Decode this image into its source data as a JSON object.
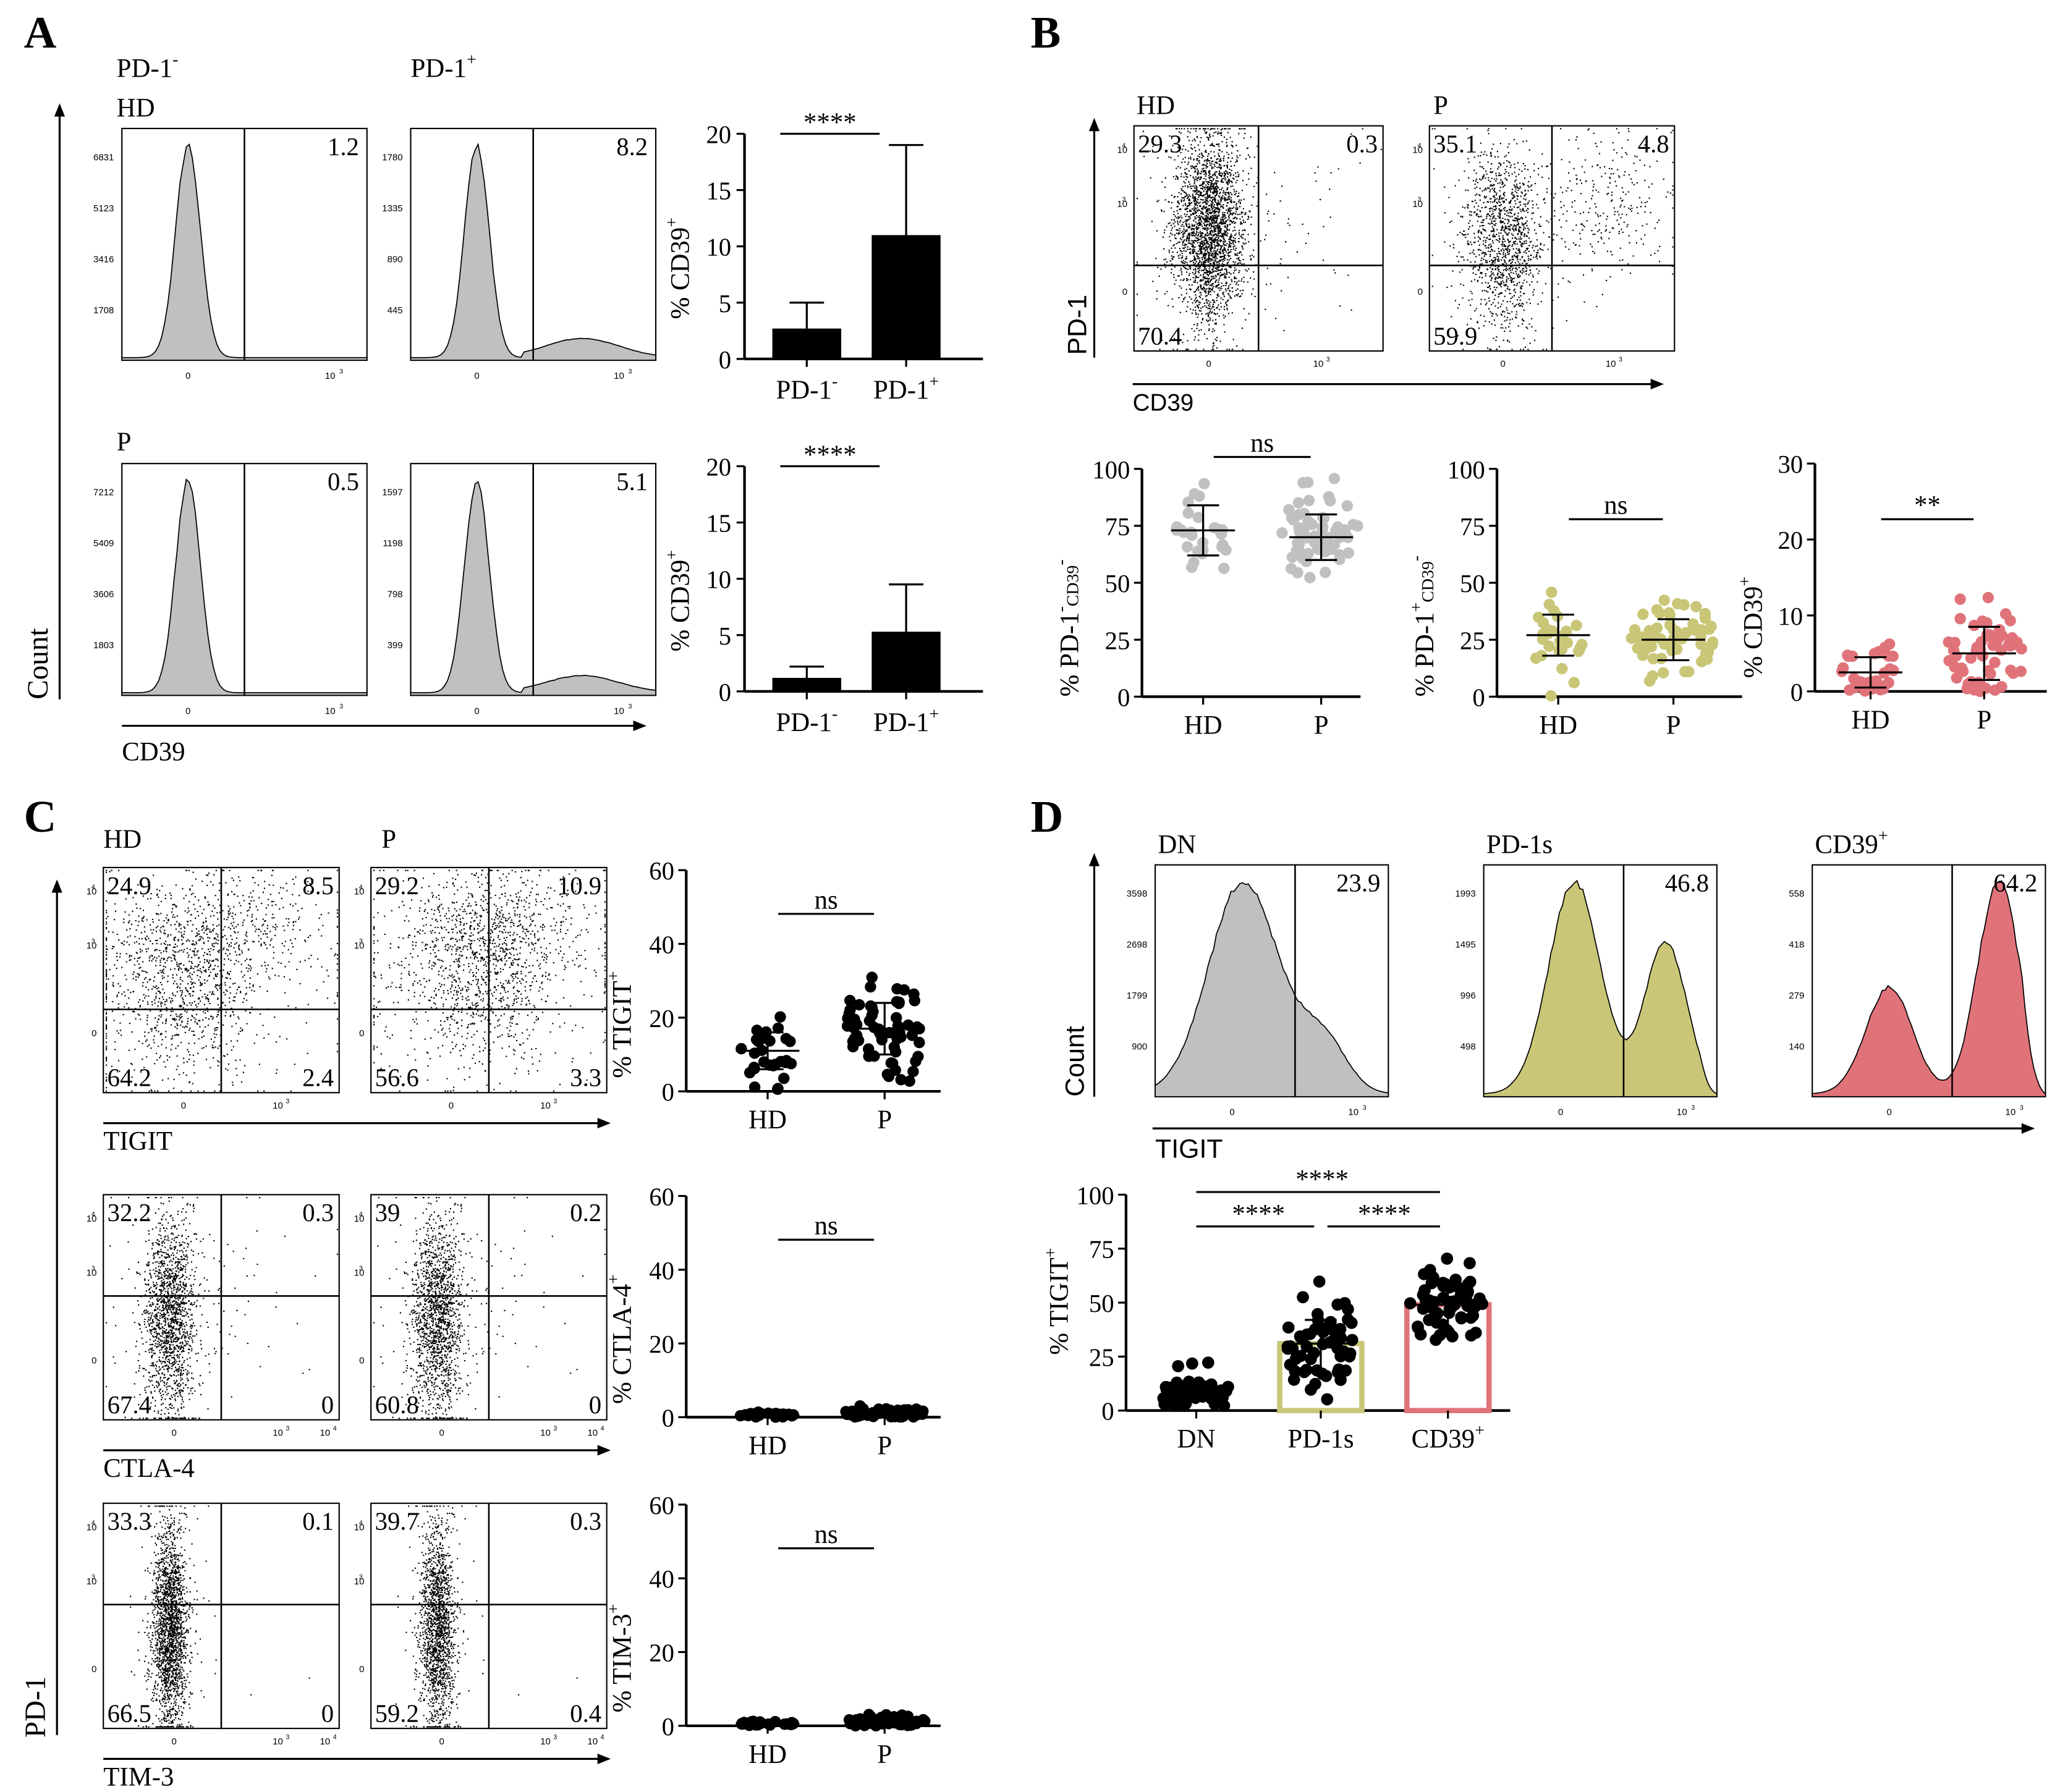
{
  "colors": {
    "gray": "#c0c0c0",
    "olive": "#c9c777",
    "salmon": "#e0737a",
    "black": "#000000"
  },
  "panels": {
    "A": {
      "letter": "A",
      "col_labels": [
        "PD-1",
        "PD-1"
      ],
      "col_sups": [
        "-",
        "+"
      ],
      "row_labels": [
        "HD",
        "P"
      ],
      "y_axis": "Count",
      "x_axis": "CD39",
      "hist": [
        {
          "yticks": [
            "6831",
            "5123",
            "3416",
            "1708"
          ],
          "pct": "1.2",
          "tail": 0.0
        },
        {
          "yticks": [
            "1780",
            "1335",
            "890",
            "445"
          ],
          "pct": "8.2",
          "tail": 0.09
        },
        {
          "yticks": [
            "7212",
            "5409",
            "3606",
            "1803"
          ],
          "pct": "0.5",
          "tail": 0.0
        },
        {
          "yticks": [
            "1597",
            "1198",
            "798",
            "399"
          ],
          "pct": "5.1",
          "tail": 0.08
        }
      ],
      "hist_xticks": [
        "0",
        "10",
        "3"
      ],
      "bars": [
        {
          "ylabel": "% CD39",
          "ylabel_sup": "+",
          "yticks": [
            "20",
            "15",
            "10",
            "5",
            "0"
          ],
          "ymax": 20,
          "cats": [
            "PD-1",
            "PD-1"
          ],
          "cat_sups": [
            "-",
            "+"
          ],
          "values": [
            2.7,
            11.0
          ],
          "err": [
            2.3,
            8.0
          ],
          "sig": "****"
        },
        {
          "ylabel": "% CD39",
          "ylabel_sup": "+",
          "yticks": [
            "20",
            "15",
            "10",
            "5",
            "0"
          ],
          "ymax": 20,
          "cats": [
            "PD-1",
            "PD-1"
          ],
          "cat_sups": [
            "-",
            "+"
          ],
          "values": [
            1.2,
            5.3
          ],
          "err": [
            1.0,
            4.2
          ],
          "sig": "****"
        }
      ]
    },
    "B": {
      "letter": "B",
      "plots": [
        {
          "title": "HD",
          "ul": "29.3",
          "ur": "0.3",
          "ll": "70.4"
        },
        {
          "title": "P",
          "ul": "35.1",
          "ur": "4.8",
          "ll": "59.9"
        }
      ],
      "y_axis": "PD-1",
      "x_axis": "CD39",
      "scatter_yticks": [
        "10",
        "4",
        "10",
        "3",
        "0"
      ],
      "scatter_xticks": [
        "0",
        "10",
        "3"
      ],
      "dots": [
        {
          "ylabel": "% PD-1",
          "ylabel_sup1": "-",
          "ylabel_mid": "CD39",
          "ylabel_sup2": "-",
          "yticks": [
            "100",
            "75",
            "50",
            "25",
            "0"
          ],
          "ymax": 100,
          "cats": [
            "HD",
            "P"
          ],
          "means": [
            73,
            70
          ],
          "sd": [
            11,
            10
          ],
          "sig": "ns",
          "color": "#c0c0c0"
        },
        {
          "ylabel": "% PD-1",
          "ylabel_sup1": "+",
          "ylabel_mid": "CD39",
          "ylabel_sup2": "-",
          "yticks": [
            "100",
            "75",
            "50",
            "25",
            "0"
          ],
          "ymax": 100,
          "cats": [
            "HD",
            "P"
          ],
          "means": [
            27,
            25
          ],
          "sd": [
            9,
            9
          ],
          "sig": "ns",
          "color": "#c9c777"
        },
        {
          "ylabel": "% CD39",
          "ylabel_sup1": "+",
          "ylabel_mid": "",
          "ylabel_sup2": "",
          "yticks": [
            "30",
            "20",
            "10",
            "0"
          ],
          "ymax": 30,
          "cats": [
            "HD",
            "P"
          ],
          "means": [
            2.5,
            5
          ],
          "sd": [
            2,
            3.5
          ],
          "sig": "**",
          "color": "#e0737a"
        }
      ]
    },
    "C": {
      "letter": "C",
      "col_labels": [
        "HD",
        "P"
      ],
      "y_axis": "PD-1",
      "rows": [
        {
          "x_axis": "TIGIT",
          "q": [
            [
              "24.9",
              "8.5",
              "64.2",
              "2.4"
            ],
            [
              "29.2",
              "10.9",
              "56.6",
              "3.3"
            ]
          ],
          "xticks": [
            "0",
            "10",
            "3"
          ]
        },
        {
          "x_axis": "CTLA-4",
          "q": [
            [
              "32.2",
              "0.3",
              "67.4",
              "0"
            ],
            [
              "39",
              "0.2",
              "60.8",
              "0"
            ]
          ],
          "xticks": [
            "0",
            "10",
            "3",
            "10",
            "4"
          ]
        },
        {
          "x_axis": "TIM-3",
          "q": [
            [
              "33.3",
              "0.1",
              "66.5",
              "0"
            ],
            [
              "39.7",
              "0.3",
              "59.2",
              "0.4"
            ]
          ],
          "xticks": [
            "0",
            "10",
            "3",
            "10",
            "4"
          ]
        }
      ],
      "dots": [
        {
          "ylabel": "% TIGIT",
          "ylabel_sup": "+",
          "yticks": [
            "60",
            "40",
            "20",
            "0"
          ],
          "ymax": 60,
          "cats": [
            "HD",
            "P"
          ],
          "means": [
            11,
            17
          ],
          "sd": [
            5,
            7
          ],
          "sig": "ns"
        },
        {
          "ylabel": "% CTLA-4",
          "ylabel_sup": "+",
          "yticks": [
            "60",
            "40",
            "20",
            "0"
          ],
          "ymax": 60,
          "cats": [
            "HD",
            "P"
          ],
          "means": [
            0.5,
            1.2
          ],
          "sd": [
            0.3,
            0.8
          ],
          "sig": "ns"
        },
        {
          "ylabel": "% TIM-3",
          "ylabel_sup": "+",
          "yticks": [
            "60",
            "40",
            "20",
            "0"
          ],
          "ymax": 60,
          "cats": [
            "HD",
            "P"
          ],
          "means": [
            0.6,
            1.3
          ],
          "sd": [
            0.3,
            0.8
          ],
          "sig": "ns"
        }
      ]
    },
    "D": {
      "letter": "D",
      "titles": [
        "DN",
        "PD-1s",
        "CD39"
      ],
      "title_sups": [
        "",
        "",
        "+"
      ],
      "y_axis": "Count",
      "x_axis": "TIGIT",
      "hist": [
        {
          "yticks": [
            "3598",
            "2698",
            "1799",
            "900"
          ],
          "pct": "23.9",
          "color": "#c0c0c0"
        },
        {
          "yticks": [
            "1993",
            "1495",
            "996",
            "498"
          ],
          "pct": "46.8",
          "color": "#c9c777"
        },
        {
          "yticks": [
            "558",
            "418",
            "279",
            "140"
          ],
          "pct": "64.2",
          "color": "#e0737a"
        }
      ],
      "bar": {
        "ylabel": "% TIGIT",
        "ylabel_sup": "+",
        "yticks": [
          "100",
          "75",
          "50",
          "25",
          "0"
        ],
        "ymax": 100,
        "cats": [
          "DN",
          "PD-1s",
          "CD39"
        ],
        "cat_sups": [
          "",
          "",
          "+"
        ],
        "values": [
          8,
          31,
          49
        ],
        "sd": [
          5,
          11,
          9
        ],
        "sig": [
          "****",
          "****",
          "****"
        ]
      }
    }
  }
}
